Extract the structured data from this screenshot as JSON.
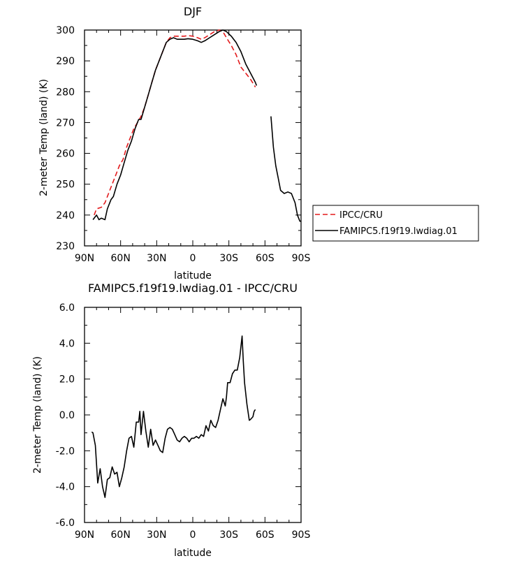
{
  "chart_data": [
    {
      "type": "line",
      "title": "DJF",
      "xlabel": "latitude",
      "ylabel": "2-meter Temp (land) (K)",
      "xlim": [
        90,
        -90
      ],
      "ylim": [
        230,
        300
      ],
      "x_ticks": [
        {
          "value": 90,
          "label": "90N"
        },
        {
          "value": 60,
          "label": "60N"
        },
        {
          "value": 30,
          "label": "30N"
        },
        {
          "value": 0,
          "label": "0"
        },
        {
          "value": -30,
          "label": "30S"
        },
        {
          "value": -60,
          "label": "60S"
        },
        {
          "value": -90,
          "label": "90S"
        }
      ],
      "y_ticks": [
        {
          "value": 300,
          "label": "300"
        },
        {
          "value": 290,
          "label": "290"
        },
        {
          "value": 280,
          "label": "280"
        },
        {
          "value": 270,
          "label": "270"
        },
        {
          "value": 260,
          "label": "260"
        },
        {
          "value": 250,
          "label": "250"
        },
        {
          "value": 240,
          "label": "240"
        },
        {
          "value": 230,
          "label": "230"
        }
      ],
      "legend": {
        "placement": "right",
        "entries": [
          {
            "name": "IPCC/CRU",
            "color": "#e31a1c",
            "dash": "dashed"
          },
          {
            "name": "FAMIPC5.f19f19.lwdiag.01",
            "color": "#000000",
            "dash": "solid"
          }
        ]
      },
      "series": [
        {
          "name": "IPCC/CRU",
          "color": "#e31a1c",
          "dash": "dashed",
          "segments": [
            [
              [
                82,
                240
              ],
              [
                80,
                242
              ],
              [
                76,
                242.5
              ],
              [
                73,
                244
              ],
              [
                70,
                247
              ],
              [
                67,
                250
              ],
              [
                64,
                253
              ],
              [
                61,
                256
              ],
              [
                58,
                258
              ],
              [
                55,
                262
              ],
              [
                52,
                265
              ],
              [
                49,
                268
              ],
              [
                46,
                270
              ],
              [
                43,
                272
              ],
              [
                40,
                275
              ],
              [
                37,
                279
              ],
              [
                34,
                283
              ],
              [
                31,
                287
              ],
              [
                28,
                290
              ],
              [
                25,
                293
              ],
              [
                22,
                296
              ],
              [
                19,
                297.5
              ],
              [
                16,
                298
              ],
              [
                13,
                298
              ],
              [
                10,
                298
              ],
              [
                7,
                298
              ],
              [
                4,
                298.2
              ],
              [
                0,
                298
              ],
              [
                -4,
                297.5
              ],
              [
                -7,
                297
              ],
              [
                -10,
                297.5
              ],
              [
                -14,
                298.5
              ],
              [
                -18,
                299.5
              ],
              [
                -22,
                300
              ],
              [
                -25,
                299.5
              ],
              [
                -28,
                297.5
              ],
              [
                -32,
                295
              ],
              [
                -36,
                292
              ],
              [
                -40,
                288
              ],
              [
                -44,
                286
              ],
              [
                -48,
                284
              ],
              [
                -52,
                281.5
              ]
            ]
          ]
        },
        {
          "name": "FAMIPC5.f19f19.lwdiag.01",
          "color": "#000000",
          "dash": "solid",
          "segments": [
            [
              [
                83,
                238.5
              ],
              [
                80,
                240
              ],
              [
                78,
                238.5
              ],
              [
                76,
                239
              ],
              [
                73,
                238.5
              ],
              [
                71,
                242
              ],
              [
                68,
                245
              ],
              [
                66,
                246
              ],
              [
                63,
                250
              ],
              [
                60,
                253
              ],
              [
                57,
                257
              ],
              [
                54,
                261
              ],
              [
                51,
                264
              ],
              [
                48,
                268
              ],
              [
                45,
                271
              ],
              [
                43,
                271
              ],
              [
                40,
                275
              ],
              [
                37,
                279
              ],
              [
                34,
                283
              ],
              [
                31,
                287
              ],
              [
                28,
                290
              ],
              [
                25,
                293
              ],
              [
                22,
                296
              ],
              [
                19,
                297
              ],
              [
                16,
                297.5
              ],
              [
                13,
                297
              ],
              [
                10,
                297
              ],
              [
                7,
                297
              ],
              [
                4,
                297.2
              ],
              [
                0,
                297
              ],
              [
                -4,
                296.5
              ],
              [
                -7,
                296
              ],
              [
                -10,
                296.5
              ],
              [
                -14,
                297.5
              ],
              [
                -18,
                298.5
              ],
              [
                -22,
                299.5
              ],
              [
                -25,
                300
              ],
              [
                -28,
                299.5
              ],
              [
                -32,
                298
              ],
              [
                -36,
                296
              ],
              [
                -40,
                293
              ],
              [
                -44,
                289
              ],
              [
                -48,
                286
              ],
              [
                -52,
                283
              ],
              [
                -53,
                282
              ]
            ],
            [
              [
                -65,
                272
              ],
              [
                -67,
                262
              ],
              [
                -69,
                256
              ],
              [
                -71,
                252
              ],
              [
                -73,
                248
              ],
              [
                -76,
                247
              ],
              [
                -79,
                247.5
              ],
              [
                -82,
                247
              ],
              [
                -85,
                244
              ],
              [
                -87,
                240
              ],
              [
                -89,
                238
              ],
              [
                -90,
                238
              ]
            ]
          ]
        }
      ]
    },
    {
      "type": "line",
      "title": "FAMIPC5.f19f19.lwdiag.01 - IPCC/CRU",
      "xlabel": "latitude",
      "ylabel": "2-meter Temp (land) (K)",
      "xlim": [
        90,
        -90
      ],
      "ylim": [
        -6,
        6
      ],
      "x_ticks": [
        {
          "value": 90,
          "label": "90N"
        },
        {
          "value": 60,
          "label": "60N"
        },
        {
          "value": 30,
          "label": "30N"
        },
        {
          "value": 0,
          "label": "0"
        },
        {
          "value": -30,
          "label": "30S"
        },
        {
          "value": -60,
          "label": "60S"
        },
        {
          "value": -90,
          "label": "90S"
        }
      ],
      "y_ticks": [
        {
          "value": 6,
          "label": "6.0"
        },
        {
          "value": 4,
          "label": "4.0"
        },
        {
          "value": 2,
          "label": "2.0"
        },
        {
          "value": 0,
          "label": "0.0"
        },
        {
          "value": -2,
          "label": "-2.0"
        },
        {
          "value": -4,
          "label": "-4.0"
        },
        {
          "value": -6,
          "label": "-6.0"
        }
      ],
      "series": [
        {
          "name": "FAMIPC5.f19f19.lwdiag.01 - IPCC/CRU",
          "color": "#000000",
          "dash": "solid",
          "segments": [
            [
              [
                84,
                -0.95
              ],
              [
                83,
                -1.0
              ],
              [
                81,
                -1.7
              ],
              [
                79,
                -3.8
              ],
              [
                77,
                -3.0
              ],
              [
                75,
                -4.0
              ],
              [
                73,
                -4.6
              ],
              [
                71,
                -3.6
              ],
              [
                69,
                -3.5
              ],
              [
                67,
                -2.9
              ],
              [
                65,
                -3.3
              ],
              [
                63,
                -3.2
              ],
              [
                61,
                -4.0
              ],
              [
                59,
                -3.5
              ],
              [
                57,
                -2.9
              ],
              [
                55,
                -2.0
              ],
              [
                53,
                -1.3
              ],
              [
                51,
                -1.2
              ],
              [
                49,
                -1.8
              ],
              [
                47,
                -0.4
              ],
              [
                45,
                -0.4
              ],
              [
                44,
                0.2
              ],
              [
                43,
                -1.1
              ],
              [
                41,
                0.2
              ],
              [
                39,
                -0.9
              ],
              [
                37,
                -1.8
              ],
              [
                35,
                -0.8
              ],
              [
                33,
                -1.7
              ],
              [
                31,
                -1.4
              ],
              [
                29,
                -1.7
              ],
              [
                27,
                -2.0
              ],
              [
                25,
                -2.1
              ],
              [
                23,
                -1.3
              ],
              [
                21,
                -0.8
              ],
              [
                19,
                -0.7
              ],
              [
                17,
                -0.8
              ],
              [
                15,
                -1.1
              ],
              [
                13,
                -1.4
              ],
              [
                11,
                -1.5
              ],
              [
                9,
                -1.3
              ],
              [
                7,
                -1.2
              ],
              [
                5,
                -1.3
              ],
              [
                3,
                -1.5
              ],
              [
                1,
                -1.3
              ],
              [
                -1,
                -1.3
              ],
              [
                -3,
                -1.2
              ],
              [
                -5,
                -1.3
              ],
              [
                -7,
                -1.1
              ],
              [
                -9,
                -1.2
              ],
              [
                -11,
                -0.6
              ],
              [
                -13,
                -0.9
              ],
              [
                -15,
                -0.3
              ],
              [
                -17,
                -0.6
              ],
              [
                -19,
                -0.7
              ],
              [
                -21,
                -0.3
              ],
              [
                -23,
                0.3
              ],
              [
                -25,
                0.9
              ],
              [
                -27,
                0.5
              ],
              [
                -28,
                1.0
              ],
              [
                -29,
                1.8
              ],
              [
                -31,
                1.8
              ],
              [
                -33,
                2.3
              ],
              [
                -35,
                2.5
              ],
              [
                -37,
                2.5
              ],
              [
                -39,
                3.2
              ],
              [
                -41,
                4.4
              ],
              [
                -42,
                3.0
              ],
              [
                -43,
                1.8
              ],
              [
                -44,
                1.2
              ],
              [
                -45,
                0.6
              ],
              [
                -47,
                -0.3
              ],
              [
                -48,
                -0.25
              ],
              [
                -50,
                -0.1
              ],
              [
                -51,
                0.2
              ],
              [
                -52,
                0.3
              ]
            ]
          ]
        }
      ]
    }
  ]
}
